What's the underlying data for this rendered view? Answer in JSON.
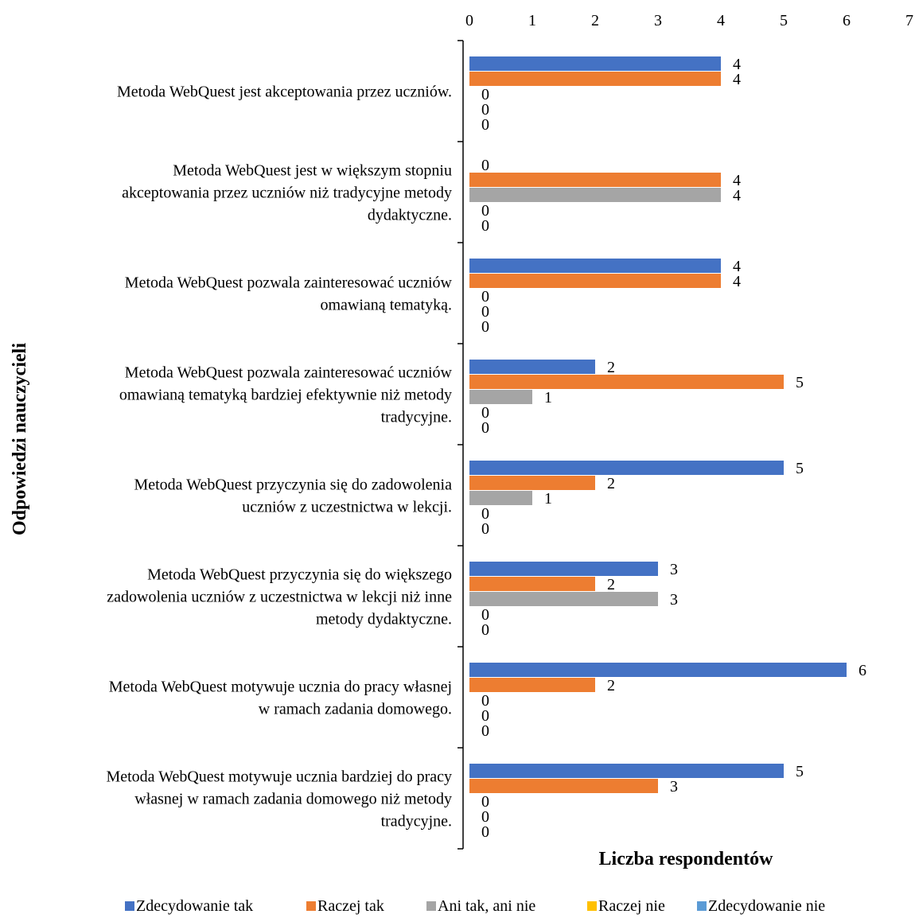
{
  "chart_data": {
    "type": "bar",
    "orientation": "horizontal",
    "xlabel": "Liczba respondentów",
    "ylabel": "Odpowiedzi nauczycieli",
    "xlim": [
      0,
      7
    ],
    "xticks": [
      0,
      1,
      2,
      3,
      4,
      5,
      6,
      7
    ],
    "x_axis_position": "top",
    "grid": false,
    "legend_position": "bottom",
    "categories": [
      [
        "Metoda WebQuest jest akceptowania przez uczniów."
      ],
      [
        "Metoda WebQuest jest w większym stopniu",
        "akceptowania przez uczniów niż tradycyjne metody",
        "dydaktyczne."
      ],
      [
        "Metoda WebQuest pozwala zainteresować uczniów",
        "omawianą tematyką."
      ],
      [
        "Metoda WebQuest pozwala zainteresować uczniów",
        "omawianą tematyką bardziej efektywnie niż metody",
        "tradycyjne."
      ],
      [
        "Metoda WebQuest przyczynia się do zadowolenia",
        "uczniów z uczestnictwa w lekcji."
      ],
      [
        "Metoda WebQuest przyczynia się do większego",
        "zadowolenia uczniów z uczestnictwa w lekcji niż inne",
        "metody dydaktyczne."
      ],
      [
        "Metoda WebQuest motywuje ucznia do pracy własnej",
        "w ramach zadania domowego."
      ],
      [
        "Metoda WebQuest motywuje ucznia bardziej do pracy",
        "własnej w ramach zadania domowego niż metody",
        "tradycyjne."
      ]
    ],
    "series": [
      {
        "name": "Zdecydowanie tak",
        "color": "#4472C4",
        "values": [
          4,
          0,
          4,
          2,
          5,
          3,
          6,
          5
        ]
      },
      {
        "name": "Raczej tak",
        "color": "#ED7D31",
        "values": [
          4,
          4,
          4,
          5,
          2,
          2,
          2,
          3
        ]
      },
      {
        "name": "Ani tak, ani nie",
        "color": "#A5A5A5",
        "values": [
          0,
          4,
          0,
          1,
          1,
          3,
          0,
          0
        ]
      },
      {
        "name": "Raczej nie",
        "color": "#FFC000",
        "values": [
          0,
          0,
          0,
          0,
          0,
          0,
          0,
          0
        ]
      },
      {
        "name": "Zdecydowanie nie",
        "color": "#5B9BD5",
        "values": [
          0,
          0,
          0,
          0,
          0,
          0,
          0,
          0
        ]
      }
    ]
  }
}
